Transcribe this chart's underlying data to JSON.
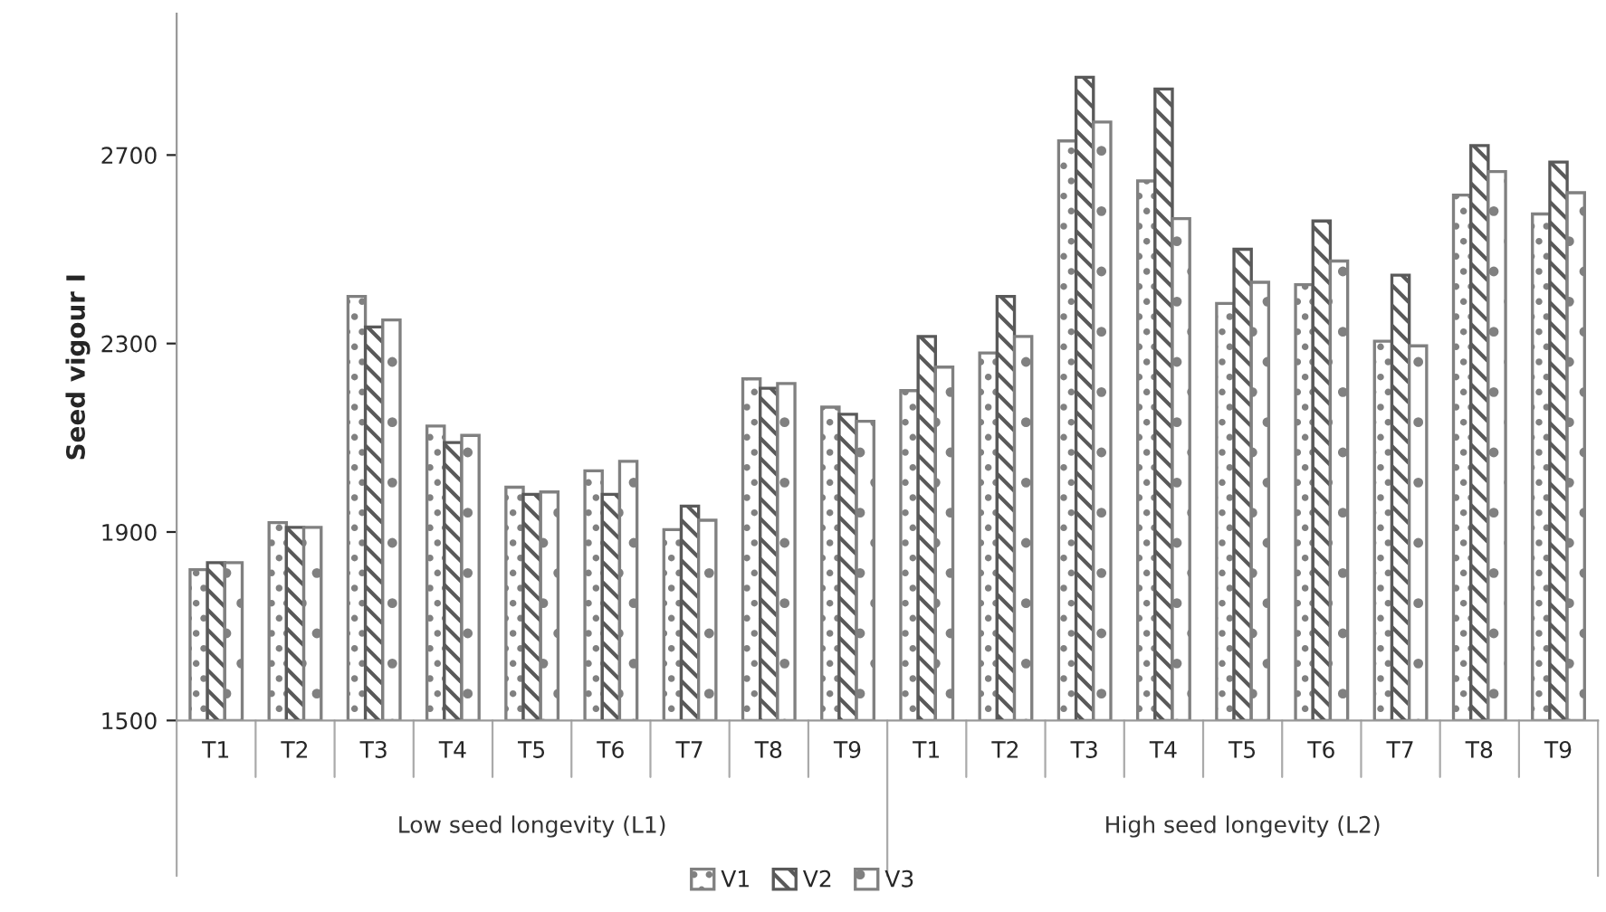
{
  "chart_data": {
    "type": "bar",
    "ylabel": "Seed vigour I",
    "categories": [
      "T1",
      "T2",
      "T3",
      "T4",
      "T5",
      "T6",
      "T7",
      "T8",
      "T9",
      "T1",
      "T2",
      "T3",
      "T4",
      "T5",
      "T6",
      "T7",
      "T8",
      "T9"
    ],
    "series": [
      {
        "name": "V1",
        "color": "#808080",
        "values": [
          1820,
          1920,
          2400,
          2125,
          1995,
          2030,
          1905,
          2225,
          2165,
          2200,
          2280,
          2730,
          2645,
          2385,
          2425,
          2305,
          2615,
          2575
        ]
      },
      {
        "name": "V2",
        "color": "#595959",
        "values": [
          1835,
          1910,
          2335,
          2090,
          1980,
          1980,
          1955,
          2205,
          2150,
          2315,
          2400,
          2865,
          2840,
          2500,
          2560,
          2445,
          2720,
          2685
        ]
      },
      {
        "name": "V3",
        "color": "#808080",
        "values": [
          1835,
          1910,
          2350,
          2105,
          1985,
          2050,
          1925,
          2215,
          2135,
          2250,
          2315,
          2770,
          2565,
          2430,
          2475,
          2295,
          2665,
          2620
        ]
      }
    ],
    "annotations": [
      "Low seed longevity (L1)",
      "High seed longevity (L2)"
    ],
    "ylim": [
      1500,
      3000
    ],
    "yticks": [
      1500,
      1900,
      2300,
      2700
    ],
    "grid": false,
    "legend": "bottom"
  }
}
